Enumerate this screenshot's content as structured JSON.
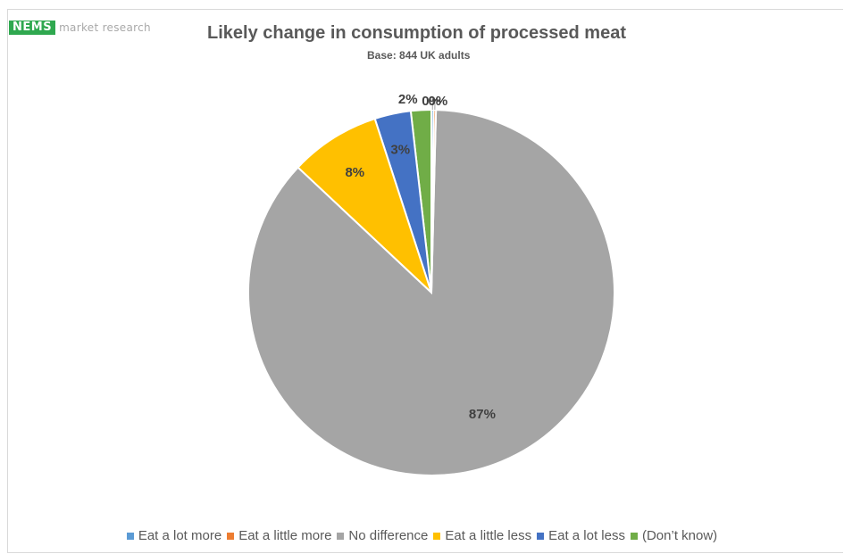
{
  "logo": {
    "mark": "NEMS",
    "text": "market research"
  },
  "chart_data": {
    "type": "pie",
    "title": "Likely change in consumption of processed meat",
    "subtitle": "Base: 844 UK adults",
    "categories": [
      "Eat a lot more",
      "Eat a little more",
      "No difference",
      "Eat a little less",
      "Eat a lot less",
      "(Don’t know)"
    ],
    "values": [
      0.2,
      0.2,
      86.6,
      8.0,
      3.2,
      1.8
    ],
    "data_labels": [
      "0%",
      "0%",
      "87%",
      "8%",
      "3%",
      "2%"
    ],
    "colors": [
      "#5b9bd5",
      "#ed7d31",
      "#a5a5a5",
      "#ffc000",
      "#4472c4",
      "#70ad47"
    ],
    "legend_position": "bottom",
    "start_angle_deg": 0,
    "direction": "counterclockwise"
  }
}
